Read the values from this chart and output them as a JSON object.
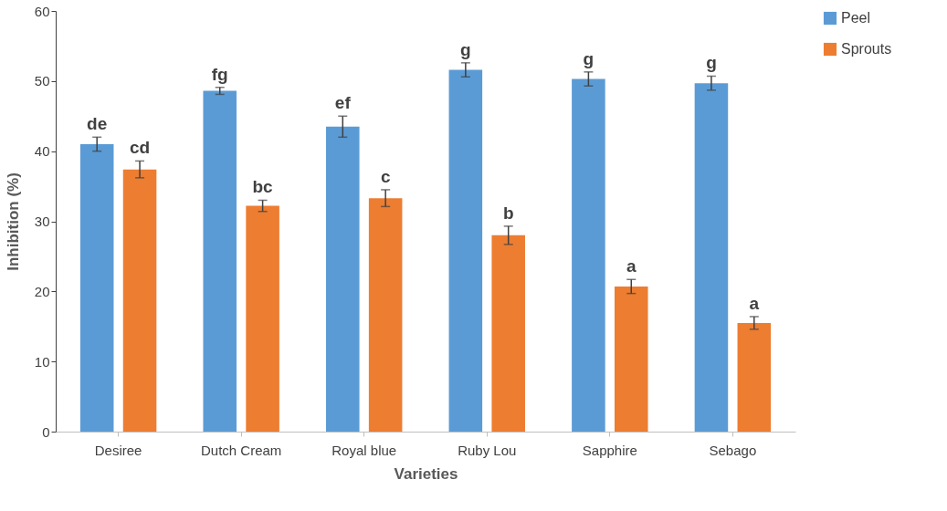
{
  "chart_data": {
    "type": "bar",
    "xlabel": "Varieties",
    "ylabel": "Inhibition (%)",
    "categories": [
      "Desiree",
      "Dutch Cream",
      "Royal blue",
      "Ruby Lou",
      "Sapphire",
      "Sebago"
    ],
    "series": [
      {
        "name": "Peel",
        "color": "#5b9bd5",
        "values": [
          41.0,
          48.6,
          43.5,
          51.6,
          50.3,
          49.7
        ],
        "errors": [
          1.0,
          0.5,
          1.5,
          1.0,
          1.0,
          1.0
        ],
        "value_labels": [
          "de",
          "fg",
          "ef",
          "g",
          "g",
          "g"
        ]
      },
      {
        "name": "Sprouts",
        "color": "#ed7d31",
        "values": [
          37.4,
          32.2,
          33.3,
          28.0,
          20.7,
          15.5
        ],
        "errors": [
          1.2,
          0.8,
          1.2,
          1.3,
          1.0,
          0.9
        ],
        "value_labels": [
          "cd",
          "bc",
          "c",
          "b",
          "a",
          "a"
        ]
      }
    ],
    "ylim": [
      0,
      60
    ],
    "yticks": [
      0,
      10,
      20,
      30,
      40,
      50,
      60
    ],
    "grid": false,
    "legend": "right"
  }
}
